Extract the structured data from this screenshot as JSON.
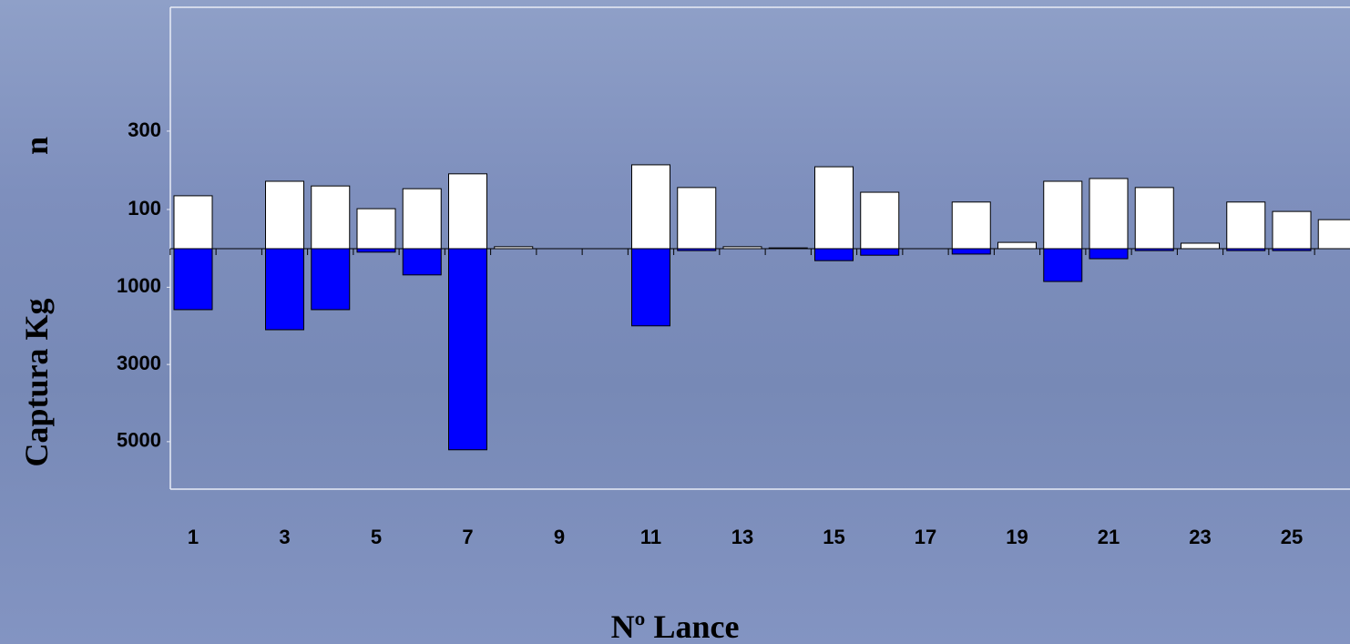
{
  "chart_data": {
    "type": "bar",
    "x_label": "Nº Lance",
    "y_label": "n",
    "y2_label": "Captura Kg",
    "categories": [
      "1",
      null,
      "3",
      null,
      "5",
      null,
      "7",
      null,
      "9",
      null,
      "11",
      null,
      "13",
      null,
      "15",
      null,
      "17",
      null,
      "19",
      null,
      "21",
      null,
      "23",
      null,
      "25",
      null
    ],
    "series": [
      {
        "name": "n",
        "color": "#ffffff",
        "values": [
          135,
          0,
          172,
          160,
          102,
          153,
          191,
          5,
          0,
          0,
          214,
          156,
          5,
          2,
          209,
          144,
          0,
          119,
          16,
          172,
          179,
          156,
          14,
          119,
          95,
          74
        ]
      },
      {
        "name": "Captura Kg",
        "color": "#0000ff",
        "axis": "y2",
        "values": [
          1580,
          0,
          2100,
          1580,
          90,
          680,
          5210,
          0,
          0,
          0,
          2000,
          50,
          0,
          0,
          310,
          170,
          0,
          140,
          0,
          850,
          260,
          50,
          0,
          50,
          50,
          0
        ]
      }
    ],
    "ylim": [
      0,
      616
    ],
    "yticks": [
      100,
      300
    ],
    "y2lim": [
      0,
      6230
    ],
    "y2ticks": [
      1000,
      3000,
      5000
    ]
  }
}
